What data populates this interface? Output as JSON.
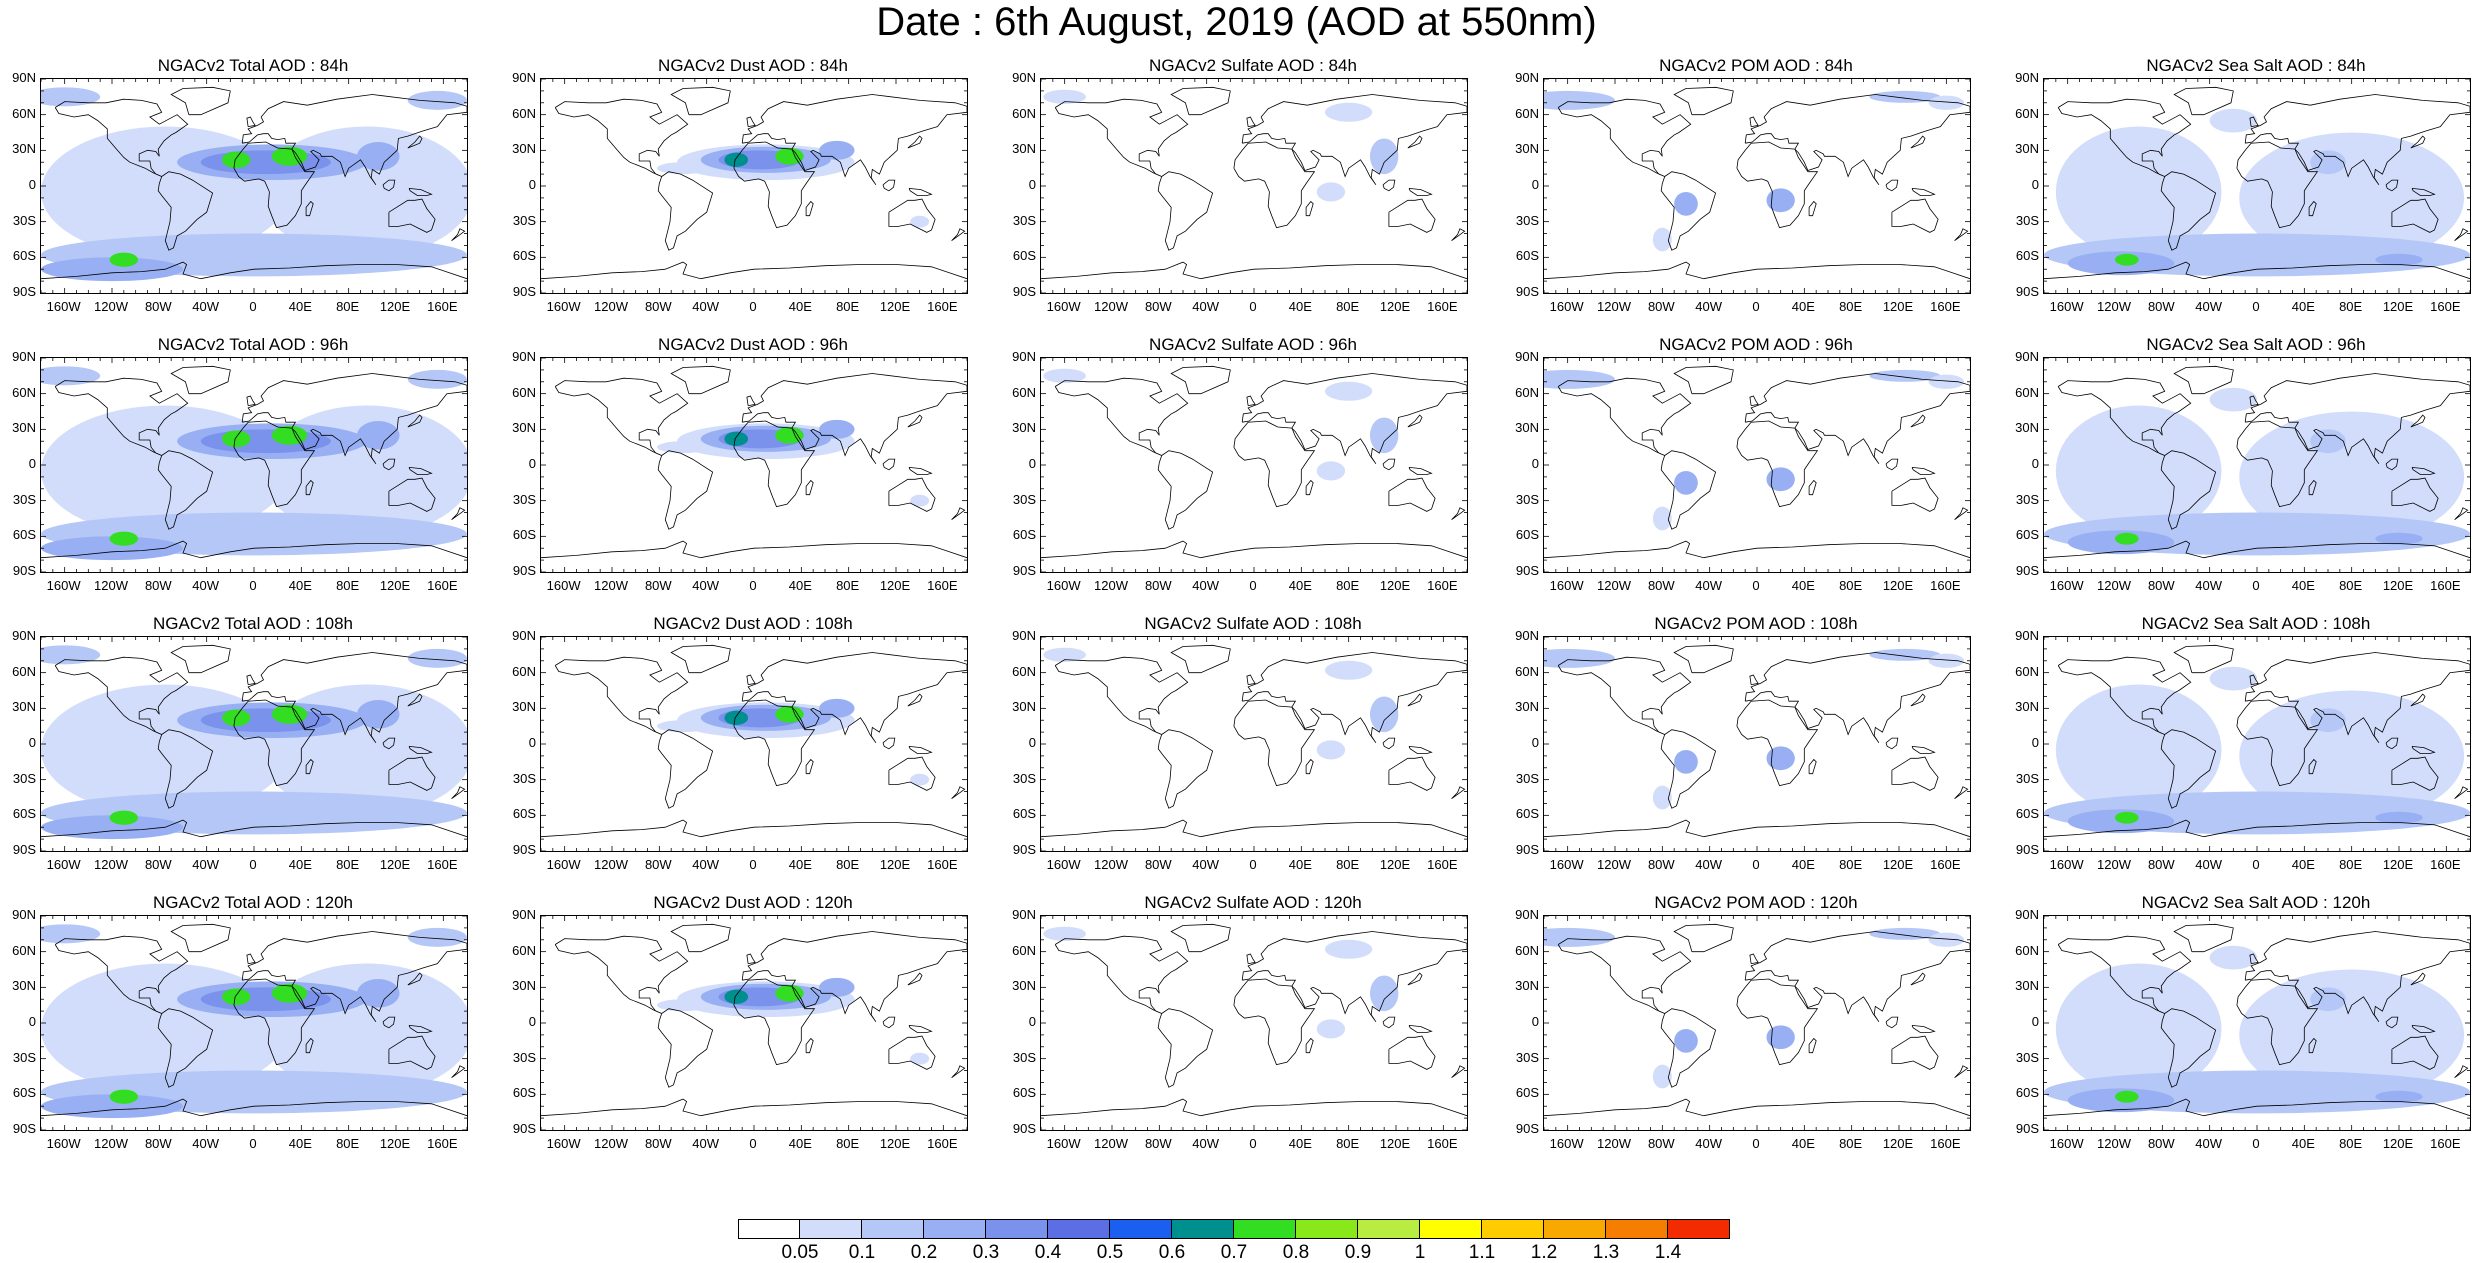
{
  "title": "Date : 6th August, 2019 (AOD at 550nm)",
  "lat_ticks": [
    "90N",
    "60N",
    "30N",
    "0",
    "30S",
    "60S",
    "90S"
  ],
  "lon_ticks": [
    "160W",
    "120W",
    "80W",
    "40W",
    "0",
    "40E",
    "80E",
    "120E",
    "160E"
  ],
  "colors": {
    "land_outline": "#000000",
    "levels": [
      "#ffffff",
      "#d2ddfb",
      "#b4c7f7",
      "#98b0f3",
      "#7a92ec",
      "#5c6ee3",
      "#1a5ff0",
      "#008f8f",
      "#33dd22",
      "#88e81a",
      "#b8ec40",
      "#ffff00",
      "#ffcc00",
      "#f9a800",
      "#f57d00",
      "#f22c00"
    ]
  },
  "colorbar": {
    "labels": [
      "0.05",
      "0.1",
      "0.2",
      "0.3",
      "0.4",
      "0.5",
      "0.6",
      "0.7",
      "0.8",
      "0.9",
      "1",
      "1.1",
      "1.2",
      "1.3",
      "1.4"
    ]
  },
  "rows": [
    {
      "titles": [
        "NGACv2 Total AOD : 84h",
        "NGACv2 Dust AOD : 84h",
        "NGACv2 Sulfate AOD : 84h",
        "NGACv2 POM AOD : 84h",
        "NGACv2 Sea Salt AOD : 84h"
      ]
    },
    {
      "titles": [
        "NGACv2 Total AOD : 96h",
        "NGACv2 Dust AOD : 96h",
        "NGACv2 Sulfate AOD : 96h",
        "NGACv2 POM AOD : 96h",
        "NGACv2 Sea Salt AOD : 96h"
      ]
    },
    {
      "titles": [
        "NGACv2 Total AOD : 108h",
        "NGACv2 Dust AOD : 108h",
        "NGACv2 Sulfate AOD : 108h",
        "NGACv2 POM AOD : 108h",
        "NGACv2 Sea Salt AOD : 108h"
      ]
    },
    {
      "titles": [
        "NGACv2 Total AOD : 120h",
        "NGACv2 Dust AOD : 120h",
        "NGACv2 Sulfate AOD : 120h",
        "NGACv2 POM AOD : 120h",
        "NGACv2 Sea Salt  AOD : 120h"
      ]
    }
  ]
}
